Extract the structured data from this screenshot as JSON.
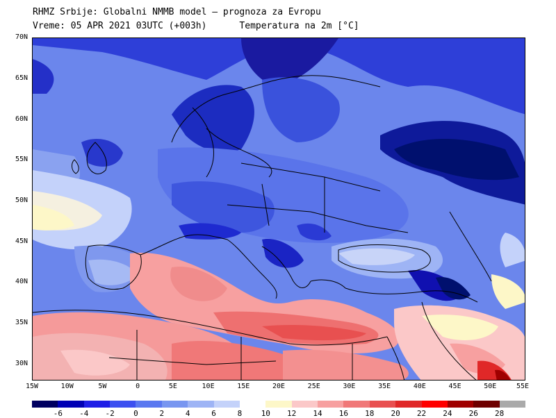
{
  "header": {
    "line1": "RHMZ Srbije: Globalni NMMB model — prognoza za Evropu",
    "line2_time": "Vreme: 05 APR 2021 03UTC (+003h)",
    "line2_param": "Temperatura na 2m [°C]"
  },
  "map": {
    "lat_labels": [
      "70N",
      "65N",
      "60N",
      "55N",
      "50N",
      "45N",
      "40N",
      "35N",
      "30N"
    ],
    "lon_labels": [
      "15W",
      "10W",
      "5W",
      "0",
      "5E",
      "10E",
      "15E",
      "20E",
      "25E",
      "30E",
      "35E",
      "40E",
      "45E",
      "50E",
      "55E"
    ]
  },
  "colorbar": {
    "colors": [
      "#000060",
      "#0000b4",
      "#1e1ee6",
      "#3c50f0",
      "#5a78f0",
      "#7896f0",
      "#9eb4f5",
      "#c4d2fa",
      "#ffffff",
      "#fdf7c8",
      "#fbc8c8",
      "#f7a0a0",
      "#f07878",
      "#e85050",
      "#e02828",
      "#ff0000",
      "#a00000",
      "#6e0000",
      "#aaaaaa"
    ],
    "labels": [
      "-6",
      "-4",
      "-2",
      "0",
      "2",
      "4",
      "6",
      "8",
      "10",
      "12",
      "14",
      "16",
      "18",
      "20",
      "22",
      "24",
      "26",
      "28"
    ]
  }
}
